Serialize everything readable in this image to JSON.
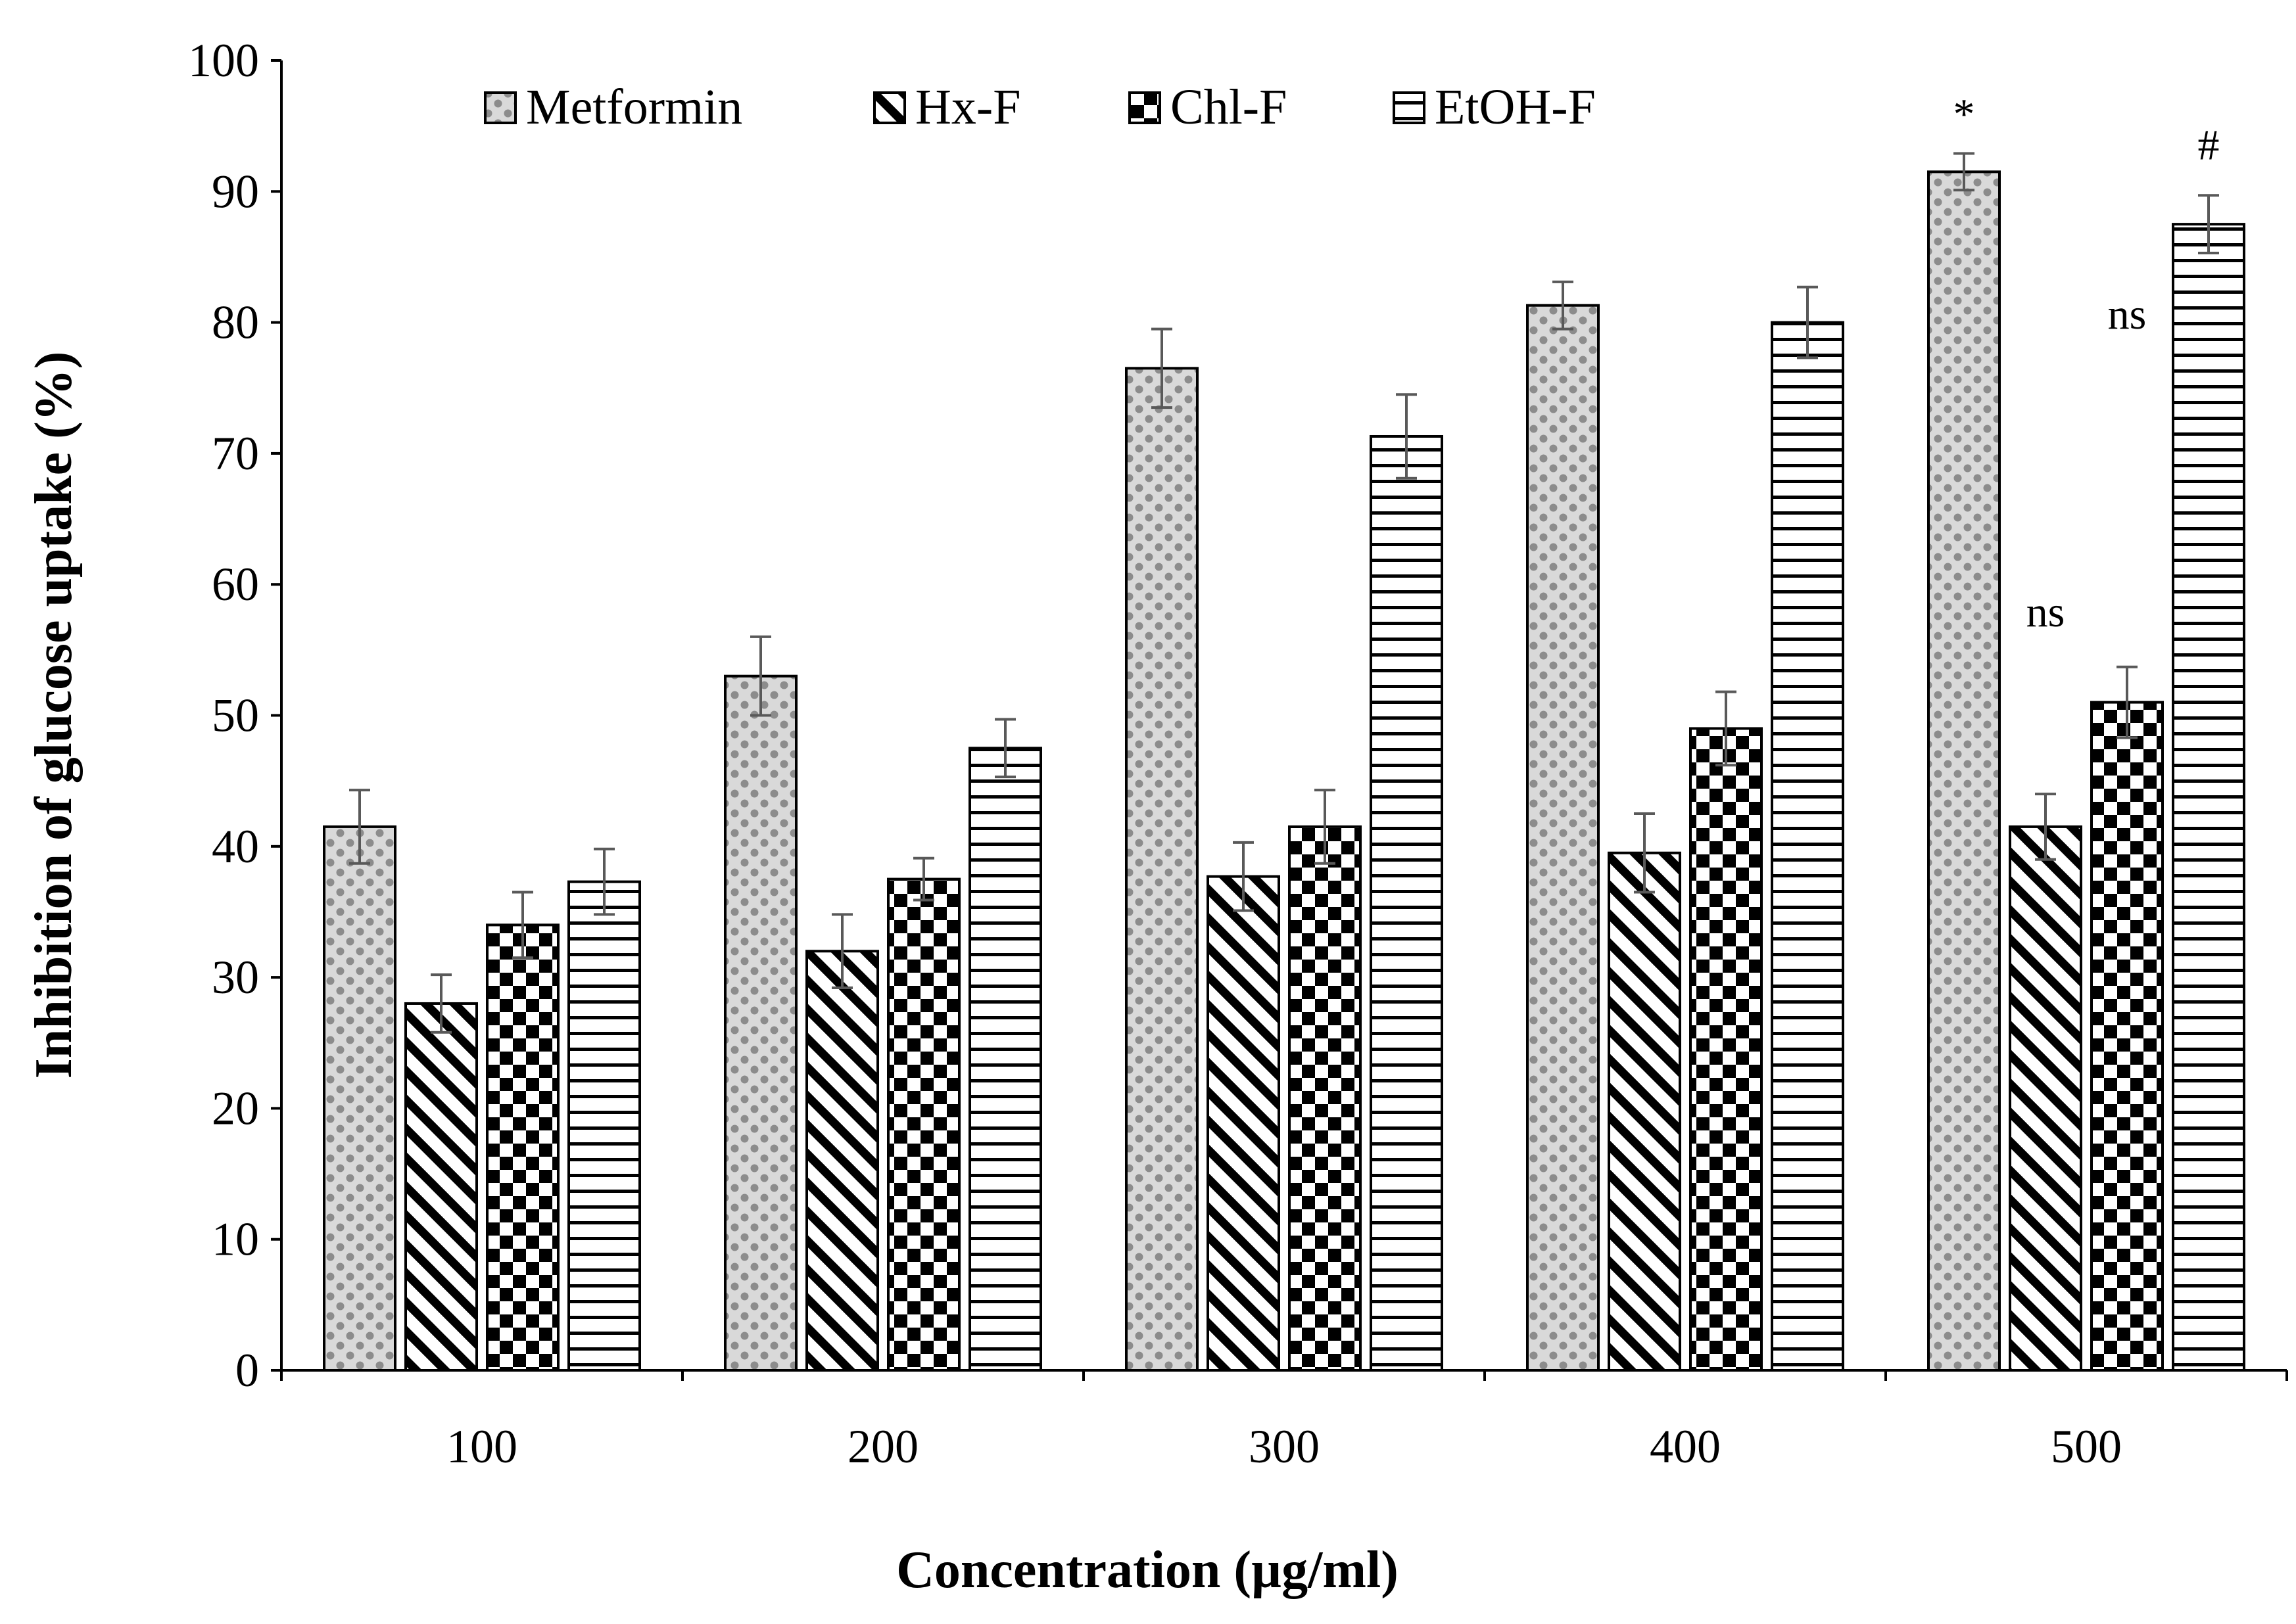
{
  "chart_data": {
    "type": "bar",
    "categories": [
      "100",
      "200",
      "300",
      "400",
      "500"
    ],
    "xlabel": "Concentration (µg/ml)",
    "ylabel": "Inhibition of glucose uptake (%)",
    "ylim": [
      0,
      100
    ],
    "yticks": [
      0,
      10,
      20,
      30,
      40,
      50,
      60,
      70,
      80,
      90,
      100
    ],
    "grid": false,
    "legend_position": "top",
    "series": [
      {
        "name": "Metformin",
        "pattern": "dots",
        "values": [
          41.5,
          53.0,
          76.5,
          81.3,
          91.5
        ],
        "errors": [
          2.8,
          3.0,
          3.0,
          1.8,
          1.4
        ]
      },
      {
        "name": "Hx-F",
        "pattern": "diagonal",
        "values": [
          28.0,
          32.0,
          37.7,
          39.5,
          41.5
        ],
        "errors": [
          2.2,
          2.8,
          2.6,
          3.0,
          2.5
        ]
      },
      {
        "name": "Chl-F",
        "pattern": "checker",
        "values": [
          34.0,
          37.5,
          41.5,
          49.0,
          51.0
        ],
        "errors": [
          2.5,
          1.6,
          2.8,
          2.8,
          2.7
        ]
      },
      {
        "name": "EtOH-F",
        "pattern": "horizontal",
        "values": [
          37.3,
          47.5,
          71.3,
          80.0,
          87.5
        ],
        "errors": [
          2.5,
          2.2,
          3.2,
          2.7,
          2.2
        ]
      }
    ],
    "annotations": [
      {
        "text": "*",
        "category": "500",
        "series": "Metformin"
      },
      {
        "text": "ns",
        "category": "500",
        "series": "Hx-F"
      },
      {
        "text": "ns",
        "category": "500",
        "series": "Chl-F"
      },
      {
        "text": "#",
        "category": "500",
        "series": "EtOH-F"
      }
    ]
  }
}
